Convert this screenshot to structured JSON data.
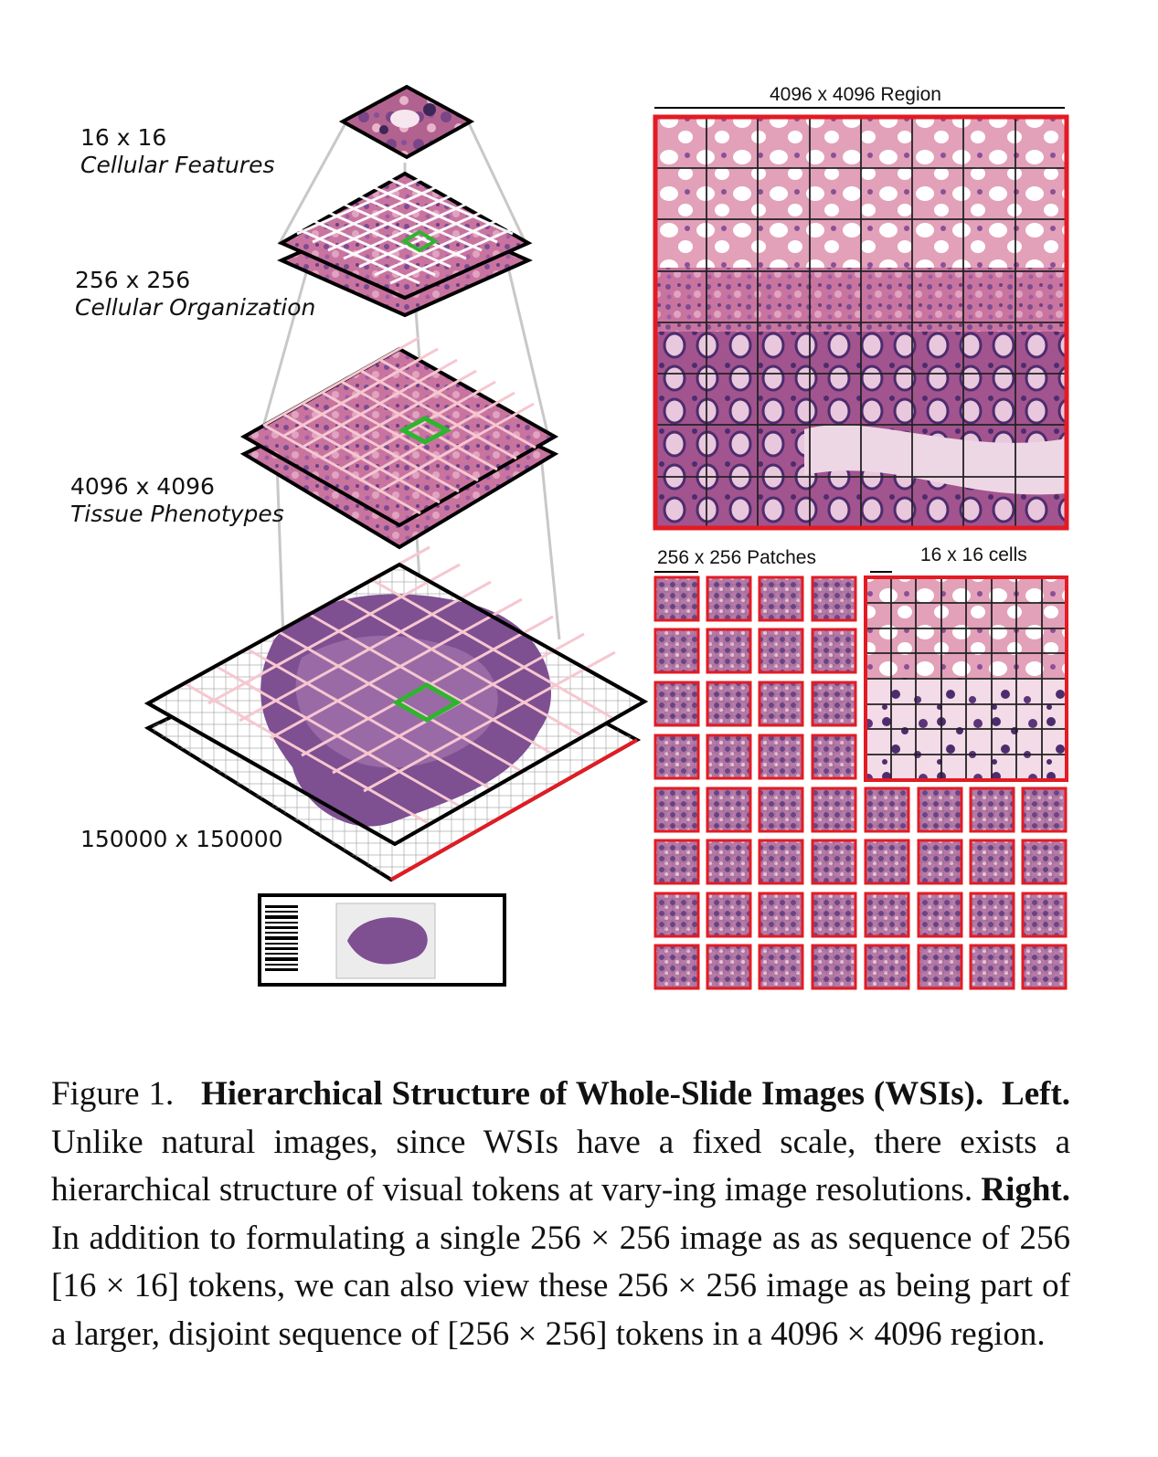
{
  "left_labels": [
    {
      "size": "16 x 16",
      "desc": "Cellular Features"
    },
    {
      "size": "256 x 256",
      "desc": "Cellular Organization"
    },
    {
      "size": "4096 x 4096",
      "desc": "Tissue Phenotypes"
    },
    {
      "size": "150000 x 150000",
      "desc": ""
    }
  ],
  "right_labels": {
    "region": "4096 x 4096 Region",
    "patches": "256 x 256 Patches",
    "cells": "16 x 16 cells"
  },
  "caption": {
    "prefix": "Figure 1.",
    "title": "Hierarchical Structure of Whole-Slide Images (WSIs).",
    "left_tag": "Left.",
    "left_text": "Unlike natural images, since WSIs have a fixed scale, there exists a hierarchical structure of visual tokens at vary-ing image resolutions.",
    "right_tag": "Right.",
    "right_text": "In addition to formulating a single 256 × 256 image as as sequence of 256 [16 × 16] tokens, we can also view these 256 × 256 image as being part of a larger, disjoint sequence of [256 × 256] tokens in a 4096 × 4096 region."
  },
  "colors": {
    "tissue": "#c9749f",
    "tissue_dark": "#6b3f86",
    "red_grid": "#e31b23",
    "green_box": "#2fb42f",
    "white_grid": "#ffffff"
  }
}
